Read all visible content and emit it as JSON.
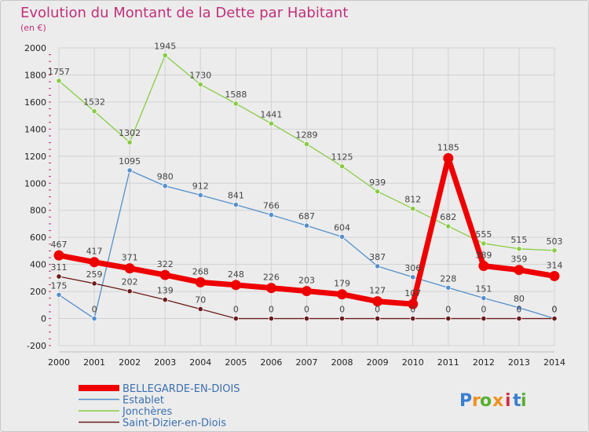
{
  "chart_data": {
    "type": "line",
    "title": "Evolution du Montant de la Dette par Habitant",
    "ylabel": "(en €)",
    "xlabel": "",
    "ylim": [
      -200,
      2000
    ],
    "yticks": [
      "-200",
      "0",
      "200",
      "400",
      "600",
      "800",
      "1000",
      "1200",
      "1400",
      "1600",
      "1800",
      "2000"
    ],
    "categories": [
      "2000",
      "2001",
      "2002",
      "2003",
      "2004",
      "2005",
      "2006",
      "2007",
      "2008",
      "2009",
      "2010",
      "2011",
      "2012",
      "2013",
      "2014"
    ],
    "series": [
      {
        "name": "Jonchères",
        "color": "#88cc44",
        "values": [
          1757,
          1532,
          1302,
          1945,
          1730,
          1588,
          1441,
          1289,
          1125,
          939,
          812,
          682,
          555,
          515,
          503
        ],
        "labels": [
          "1757",
          "1532",
          "1302",
          "1945",
          "1730",
          "1588",
          "1441",
          "1289",
          "1125",
          "939",
          "812",
          "682",
          "555",
          "515",
          "503"
        ]
      },
      {
        "name": "Establet",
        "color": "#5590cc",
        "values": [
          175,
          0,
          1095,
          980,
          912,
          841,
          766,
          687,
          604,
          387,
          306,
          228,
          151,
          80,
          0
        ],
        "labels": [
          "175",
          "0",
          "1095",
          "980",
          "912",
          "841",
          "766",
          "687",
          "604",
          "387",
          "306",
          "228",
          "151",
          "80",
          "0"
        ]
      },
      {
        "name": "Saint-Dizier-en-Diois",
        "color": "#6b1c1c",
        "values": [
          311,
          259,
          202,
          139,
          70,
          0,
          0,
          0,
          0,
          0,
          0,
          0,
          0,
          0,
          0
        ],
        "labels": [
          "311",
          "259",
          "202",
          "139",
          "70",
          "0",
          "0",
          "0",
          "0",
          "0",
          "0",
          "0",
          "0",
          "0",
          "0"
        ]
      },
      {
        "name": "BELLEGARDE-EN-DIOIS",
        "color": "#ee0000",
        "values": [
          467,
          417,
          371,
          322,
          268,
          248,
          226,
          203,
          179,
          127,
          107,
          1185,
          389,
          359,
          314
        ],
        "labels": [
          "467",
          "417",
          "371",
          "322",
          "268",
          "248",
          "226",
          "203",
          "179",
          "127",
          "107",
          "1185",
          "389",
          "359",
          "314"
        ]
      }
    ],
    "legend": [
      "BELLEGARDE-EN-DIOIS",
      "Establet",
      "Jonchères",
      "Saint-Dizier-en-Diois"
    ],
    "legend_position": "bottom-left"
  },
  "brand": {
    "letters": [
      "P",
      "r",
      "o",
      "x",
      "i",
      "t",
      "i"
    ],
    "colors": [
      "#3a7fd0",
      "#f09020",
      "#58b030",
      "#f09020",
      "#d03040",
      "#3a7fd0",
      "#58b030"
    ]
  }
}
